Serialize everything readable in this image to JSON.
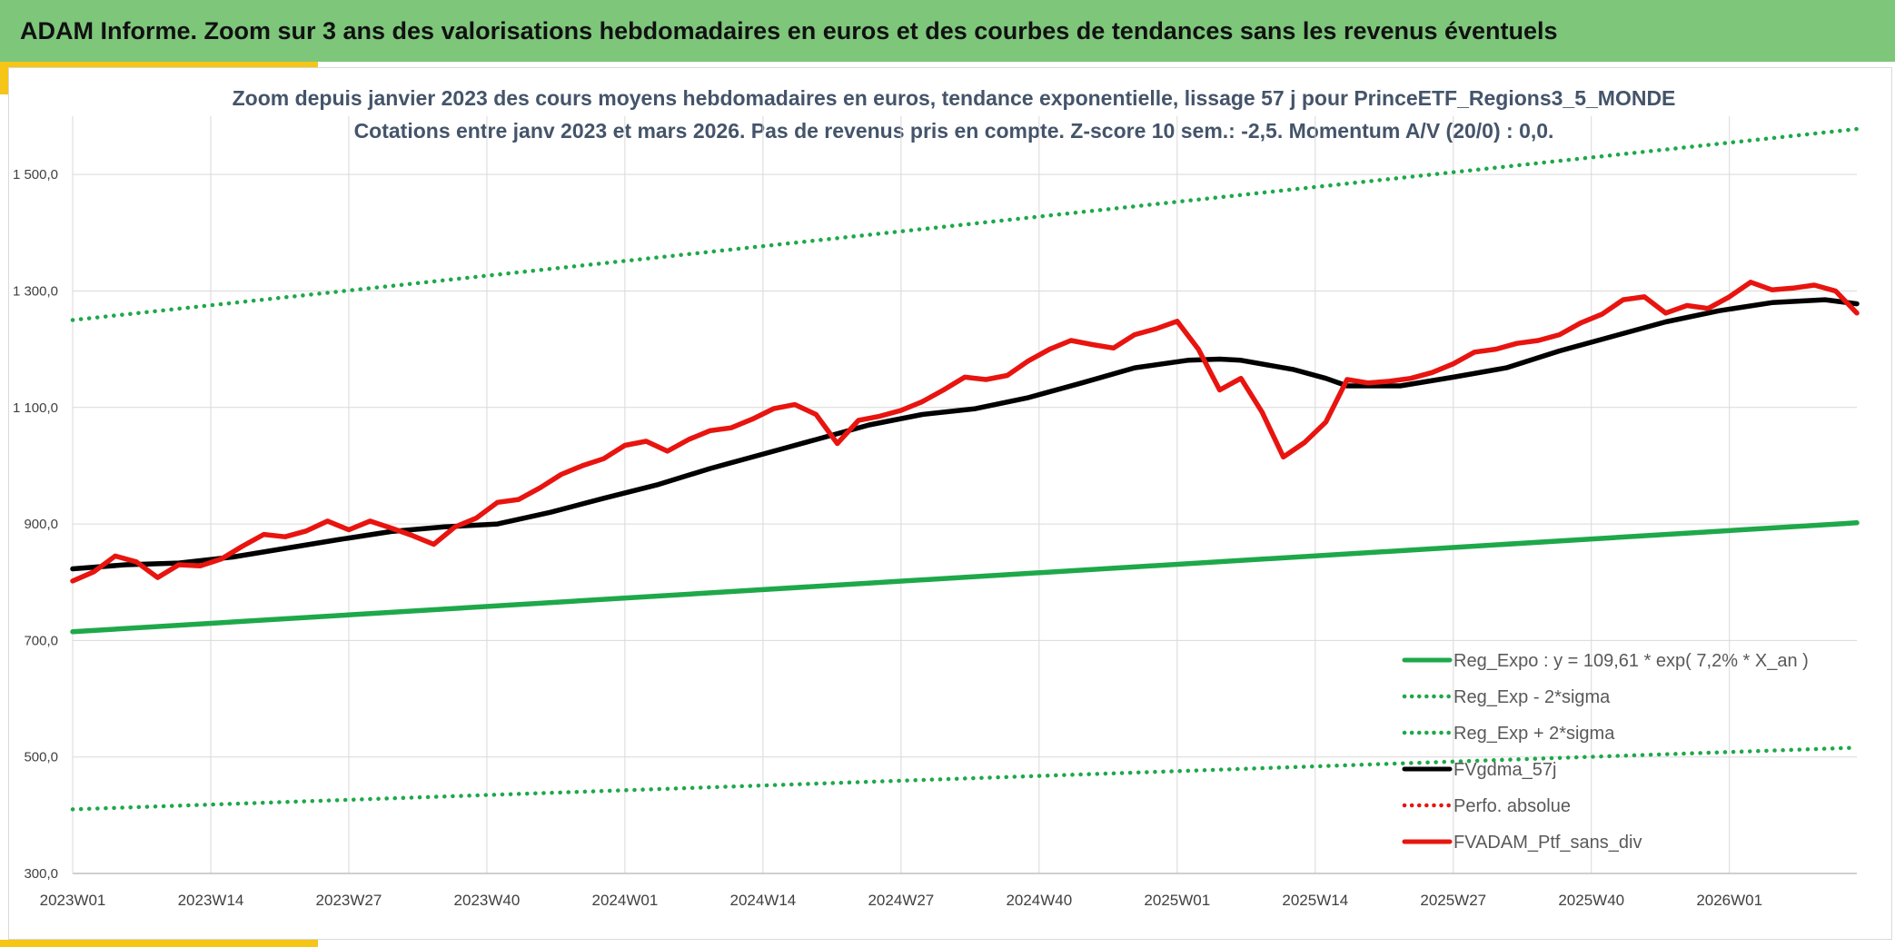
{
  "banner": {
    "title": "ADAM Informe. Zoom sur 3 ans des valorisations hebdomadaires en euros et des courbes de tendances sans les revenus éventuels"
  },
  "colors": {
    "banner": "#7dc67a",
    "accent": "#f5c518",
    "title_text": "#44546a",
    "trend_green": "#1ea84a",
    "smooth_black": "#000000",
    "portfolio_red": "#e8140f"
  },
  "chart_data": {
    "type": "line",
    "title": "Zoom depuis janvier 2023 des cours moyens hebdomadaires en euros, tendance exponentielle, lissage 57 j pour PrinceETF_Regions3_5_MONDE",
    "subtitle": "Cotations entre janv 2023 et mars 2026. Pas de revenus pris en compte. Z-score 10 sem.: -2,5. Momentum A/V (20/0) : 0,0.",
    "xlabel": "",
    "ylabel": "",
    "ylim": [
      300,
      1600
    ],
    "yticks": [
      300,
      500,
      700,
      900,
      1100,
      1300,
      1500
    ],
    "ytick_labels": [
      "300,0",
      "500,0",
      "700,0",
      "900,0",
      "1 100,0",
      "1 300,0",
      "1 500,0"
    ],
    "x_range": [
      0,
      168
    ],
    "xtick_positions": [
      0,
      13,
      26,
      39,
      52,
      65,
      78,
      91,
      104,
      117,
      130,
      143,
      156
    ],
    "xtick_labels": [
      "2023W01",
      "2023W14",
      "2023W27",
      "2023W40",
      "2024W01",
      "2024W14",
      "2024W27",
      "2024W40",
      "2025W01",
      "2025W14",
      "2025W27",
      "2025W40",
      "2026W01"
    ],
    "grid": true,
    "legend_position": "bottom-right",
    "series": [
      {
        "name": "Reg_Expo : y = 109,61 * exp( 7,2% *  X_an )",
        "style": "solid",
        "color": "#1ea84a",
        "x": [
          0,
          168
        ],
        "y": [
          715,
          902
        ]
      },
      {
        "name": "Reg_Exp - 2*sigma",
        "style": "dotted",
        "color": "#1ea84a",
        "x": [
          0,
          168
        ],
        "y": [
          410,
          516
        ]
      },
      {
        "name": "Reg_Exp + 2*sigma",
        "style": "dotted",
        "color": "#1ea84a",
        "x": [
          0,
          168
        ],
        "y": [
          1250,
          1578
        ]
      },
      {
        "name": "FVgdma_57j",
        "style": "solid",
        "color": "#000000",
        "x": [
          0,
          5,
          10,
          15,
          20,
          25,
          30,
          35,
          40,
          45,
          50,
          55,
          60,
          65,
          70,
          75,
          80,
          85,
          90,
          95,
          100,
          105,
          108,
          110,
          115,
          118,
          120,
          125,
          130,
          135,
          140,
          145,
          150,
          155,
          160,
          165,
          168
        ],
        "y": [
          823,
          830,
          833,
          843,
          858,
          873,
          887,
          895,
          900,
          920,
          944,
          967,
          995,
          1020,
          1045,
          1070,
          1088,
          1098,
          1117,
          1142,
          1168,
          1181,
          1183,
          1181,
          1165,
          1150,
          1137,
          1137,
          1152,
          1168,
          1197,
          1222,
          1247,
          1266,
          1280,
          1285,
          1278
        ]
      },
      {
        "name": "Perfo. absolue",
        "style": "dotted",
        "color": "#e8140f",
        "x": [],
        "y": []
      },
      {
        "name": "FVADAM_Ptf_sans_div",
        "style": "solid",
        "color": "#e8140f",
        "x": [
          0,
          2,
          4,
          6,
          8,
          10,
          12,
          14,
          16,
          18,
          20,
          22,
          24,
          26,
          28,
          30,
          32,
          34,
          36,
          38,
          40,
          42,
          44,
          46,
          48,
          50,
          52,
          54,
          56,
          58,
          60,
          62,
          64,
          66,
          68,
          70,
          72,
          74,
          76,
          78,
          80,
          82,
          84,
          86,
          88,
          90,
          92,
          94,
          96,
          98,
          100,
          102,
          104,
          106,
          108,
          110,
          112,
          114,
          116,
          118,
          120,
          122,
          124,
          126,
          128,
          130,
          132,
          134,
          136,
          138,
          140,
          142,
          144,
          146,
          148,
          150,
          152,
          154,
          156,
          158,
          160,
          162,
          164,
          166,
          168
        ],
        "y": [
          802,
          818,
          845,
          835,
          808,
          830,
          828,
          840,
          862,
          882,
          878,
          888,
          905,
          890,
          905,
          893,
          880,
          865,
          895,
          910,
          937,
          942,
          962,
          985,
          1000,
          1012,
          1035,
          1042,
          1025,
          1045,
          1060,
          1065,
          1080,
          1098,
          1105,
          1088,
          1038,
          1078,
          1085,
          1095,
          1110,
          1130,
          1152,
          1148,
          1155,
          1180,
          1200,
          1215,
          1208,
          1202,
          1225,
          1235,
          1248,
          1200,
          1130,
          1150,
          1092,
          1015,
          1040,
          1075,
          1148,
          1142,
          1145,
          1150,
          1160,
          1175,
          1195,
          1200,
          1210,
          1215,
          1225,
          1245,
          1260,
          1285,
          1290,
          1262,
          1275,
          1270,
          1290,
          1315,
          1302,
          1305,
          1310,
          1300,
          1262
        ]
      }
    ]
  }
}
